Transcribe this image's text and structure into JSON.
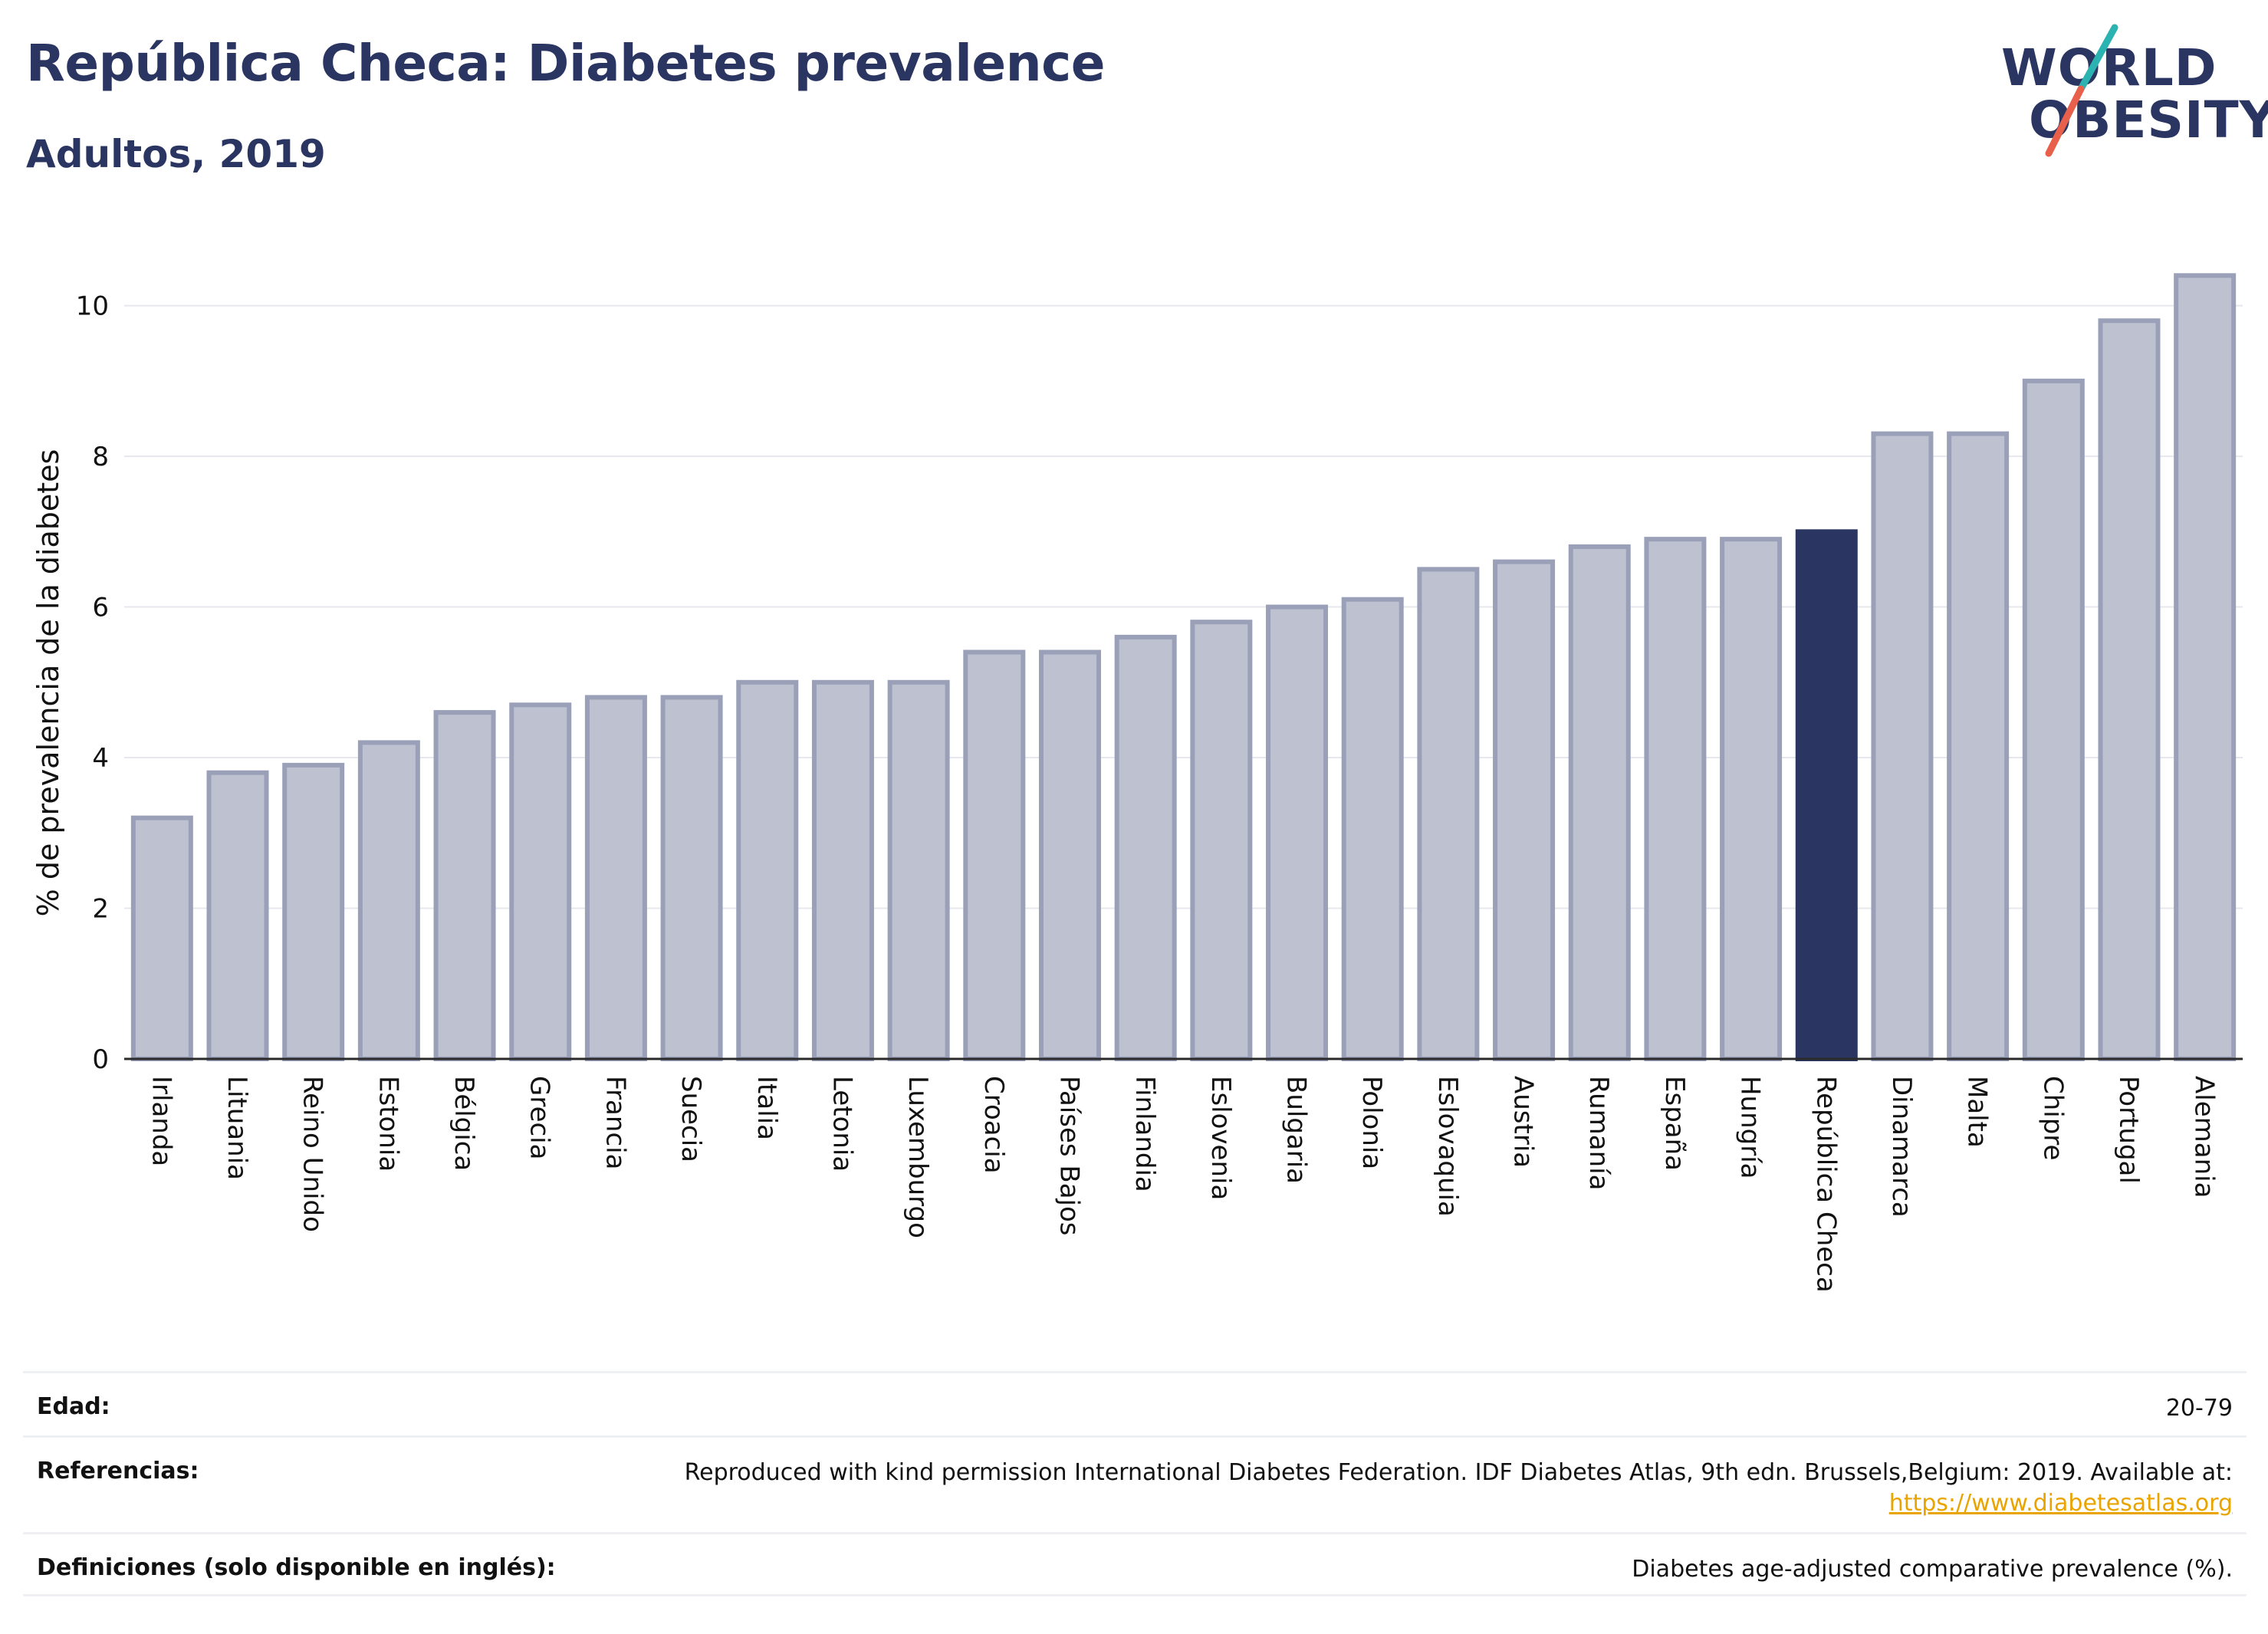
{
  "header": {
    "title": "República Checa: Diabetes prevalence",
    "subtitle": "Adultos, 2019"
  },
  "logo": {
    "line1": "WORLD",
    "line2": "OBESITY",
    "accent_teal": "#2bb3b1",
    "accent_red": "#e8604c"
  },
  "colors": {
    "bar": "#bec1cf",
    "bar_outline": "#9aa0b8",
    "highlight": "#2a3561",
    "grid": "#e6e8ee",
    "text": "#2a3561"
  },
  "chart_data": {
    "type": "bar",
    "ylabel": "% de prevalencia de la diabetes",
    "ylim": [
      0,
      10.8
    ],
    "yticks": [
      0,
      2,
      4,
      6,
      8,
      10
    ],
    "grid": true,
    "highlight": "República Checa",
    "categories": [
      "Irlanda",
      "Lituania",
      "Reino Unido",
      "Estonia",
      "Bélgica",
      "Grecia",
      "Francia",
      "Suecia",
      "Italia",
      "Letonia",
      "Luxemburgo",
      "Croacia",
      "Países Bajos",
      "Finlandia",
      "Eslovenia",
      "Bulgaria",
      "Polonia",
      "Eslovaquia",
      "Austria",
      "Rumanía",
      "España",
      "Hungría",
      "República Checa",
      "Dinamarca",
      "Malta",
      "Chipre",
      "Portugal",
      "Alemania"
    ],
    "values": [
      3.2,
      3.8,
      3.9,
      4.2,
      4.6,
      4.7,
      4.8,
      4.8,
      5.0,
      5.0,
      5.0,
      5.4,
      5.4,
      5.6,
      5.8,
      6.0,
      6.1,
      6.5,
      6.6,
      6.8,
      6.9,
      6.9,
      7.0,
      8.3,
      8.3,
      9.0,
      9.8,
      10.4
    ]
  },
  "footer": {
    "age_label": "Edad:",
    "age_value": "20-79",
    "refs_label": "Referencias:",
    "refs_text": "Reproduced with kind permission International Diabetes Federation. IDF Diabetes Atlas, 9th edn. Brussels,Belgium: 2019. Available at:",
    "refs_link": "https://www.diabetesatlas.org",
    "defs_label": "Definiciones (solo disponible en inglés):",
    "defs_text": "Diabetes age-adjusted comparative prevalence (%)."
  }
}
